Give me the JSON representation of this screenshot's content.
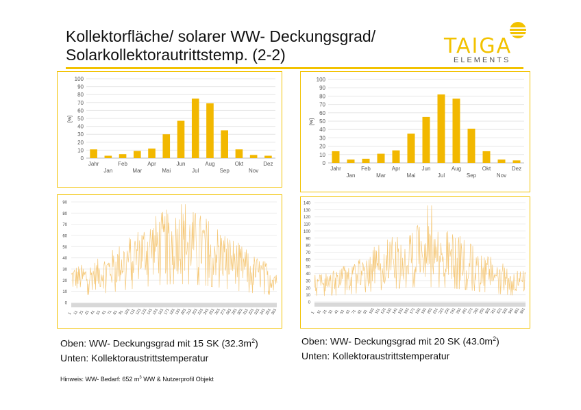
{
  "title": {
    "line1": "Kollektorfläche/ solarer WW- Deckungsgrad/",
    "line2": "Solarkollektorautrittstemp. (2-2)"
  },
  "logo": {
    "main": "TAIGA",
    "sub": "ELEMENTS",
    "color": "#f2c200"
  },
  "captions": {
    "left": {
      "line1_pre": "Oben: WW- Deckungsgrad mit 15 SK (32.3m",
      "line1_sup": "2",
      "line1_post": ")",
      "line2": "Unten: Kollektoraustrittstemperatur"
    },
    "right": {
      "line1_pre": "Oben: WW- Deckungsgrad mit 20 SK (43.0m",
      "line1_sup": "2",
      "line1_post": ")",
      "line2": "Unten: Kollektoraustrittstemperatur"
    }
  },
  "note": {
    "pre": "Hinweis: WW- Bedarf: 652 m",
    "sup": "3",
    "post": " WW & Nutzerprofil Objekt"
  },
  "chart_data": [
    {
      "type": "bar",
      "ylabel": "[%]",
      "ylim": [
        0,
        100
      ],
      "yticks": [
        0,
        10,
        20,
        30,
        40,
        50,
        60,
        70,
        80,
        90,
        100
      ],
      "categories": [
        "Jahr",
        "Jan",
        "Feb",
        "Mar",
        "Apr",
        "Mai",
        "Jun",
        "Jul",
        "Aug",
        "Sep",
        "Okt",
        "Nov",
        "Dez"
      ],
      "values": [
        11,
        3,
        5,
        9,
        12,
        30,
        47,
        75,
        69,
        35,
        11,
        4,
        3
      ],
      "color": "#f2b800",
      "grid": true
    },
    {
      "type": "bar",
      "ylabel": "[%]",
      "ylim": [
        0,
        100
      ],
      "yticks": [
        0,
        10,
        20,
        30,
        40,
        50,
        60,
        70,
        80,
        90,
        100
      ],
      "categories": [
        "Jahr",
        "Jan",
        "Feb",
        "Mar",
        "Apr",
        "Mai",
        "Jun",
        "Jul",
        "Aug",
        "Sep",
        "Okt",
        "Nov",
        "Dez"
      ],
      "values": [
        14,
        4,
        5,
        11,
        15,
        35,
        55,
        82,
        77,
        41,
        14,
        4,
        3
      ],
      "color": "#f2b800",
      "grid": true
    },
    {
      "type": "line",
      "ylim": [
        0,
        90
      ],
      "yticks": [
        0,
        10,
        20,
        30,
        40,
        50,
        60,
        70,
        80,
        90
      ],
      "x_range": [
        1,
        365
      ],
      "xticks": [
        1,
        11,
        21,
        31,
        41,
        51,
        61,
        71,
        81,
        91,
        101,
        111,
        121,
        131,
        141,
        151,
        161,
        171,
        181,
        191,
        201,
        211,
        221,
        231,
        241,
        251,
        261,
        271,
        281,
        291,
        301,
        311,
        321,
        331,
        341,
        351,
        361
      ],
      "series": [
        {
          "seasonal_peak": 55,
          "winter_base": 22,
          "max_value": 88,
          "color": "#f5c878"
        }
      ],
      "grid": true
    },
    {
      "type": "line",
      "ylim": [
        0,
        140
      ],
      "yticks": [
        0,
        10,
        20,
        30,
        40,
        50,
        60,
        70,
        80,
        90,
        100,
        110,
        120,
        130,
        140
      ],
      "x_range": [
        1,
        365
      ],
      "xticks": [
        1,
        11,
        21,
        31,
        41,
        51,
        61,
        71,
        81,
        91,
        101,
        111,
        121,
        131,
        141,
        151,
        161,
        171,
        181,
        191,
        201,
        211,
        221,
        231,
        241,
        251,
        261,
        271,
        281,
        291,
        301,
        311,
        321,
        331,
        341,
        351,
        361
      ],
      "series": [
        {
          "seasonal_peak": 70,
          "winter_base": 28,
          "max_value": 136,
          "color": "#f5c878"
        }
      ],
      "grid": true
    }
  ]
}
